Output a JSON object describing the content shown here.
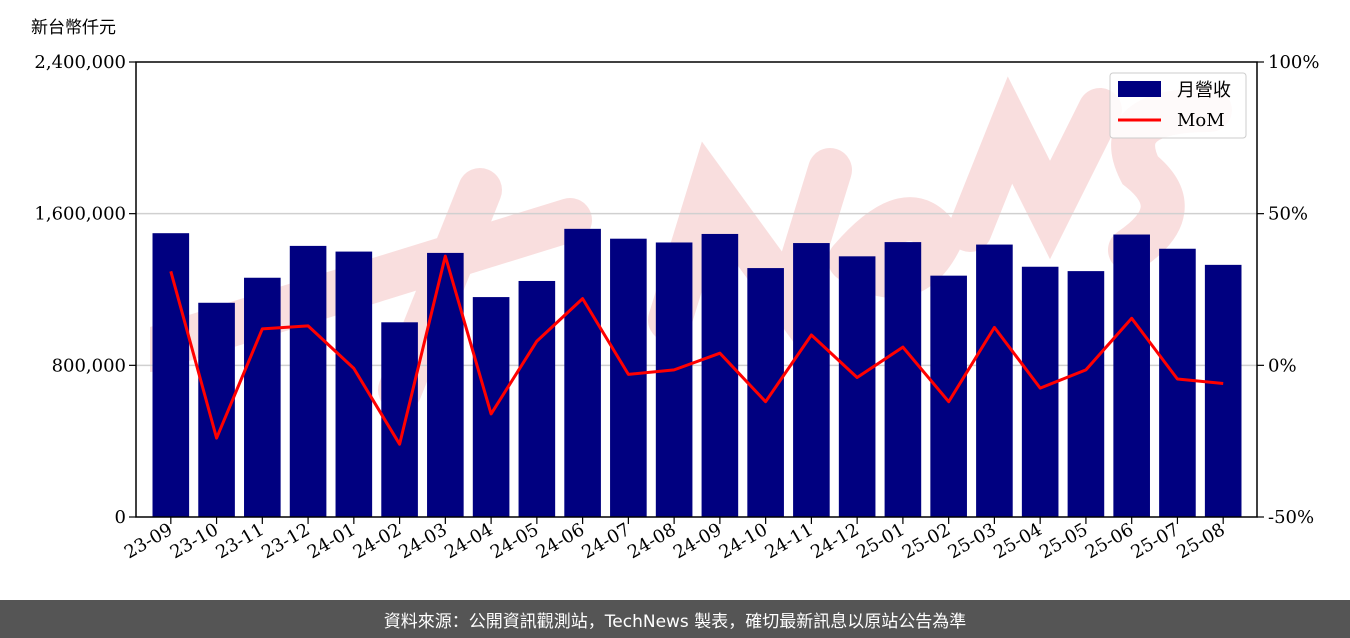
{
  "footer": {
    "text": "資料來源：公開資訊觀測站，TechNews 製表，確切最新訊息以原站公告為準"
  },
  "colors": {
    "bar": "#000080",
    "line": "#ff0000",
    "footer_bg": "#555555",
    "watermark": "#f5c4c4"
  },
  "watermark_icon": "technews-logo-watermark",
  "chart_data": {
    "type": "bar",
    "ylabel": "新台幣仟元",
    "ylim": [
      0,
      2400000
    ],
    "y_ticks": [
      0,
      800000,
      1600000,
      2400000
    ],
    "y_tick_labels": [
      "0",
      "800,000",
      "1,600,000",
      "2,400,000"
    ],
    "y2lim": [
      -50,
      100
    ],
    "y2_ticks": [
      -50,
      0,
      50,
      100
    ],
    "y2_tick_labels": [
      "-50%",
      "0%",
      "50%",
      "100%"
    ],
    "grid": "horizontal",
    "legend_position": "top-right",
    "categories": [
      "23-09",
      "23-10",
      "23-11",
      "23-12",
      "24-01",
      "24-02",
      "24-03",
      "24-04",
      "24-05",
      "24-06",
      "24-07",
      "24-08",
      "24-09",
      "24-10",
      "24-11",
      "24-12",
      "25-01",
      "25-02",
      "25-03",
      "25-04",
      "25-05",
      "25-06",
      "25-07",
      "25-08"
    ],
    "series": [
      {
        "name": "月營收",
        "type": "bar",
        "axis": "left",
        "values": [
          1497000,
          1130000,
          1262000,
          1430000,
          1400000,
          1027000,
          1393000,
          1160000,
          1245000,
          1520000,
          1468000,
          1448000,
          1493000,
          1313000,
          1445000,
          1375000,
          1450000,
          1273000,
          1437000,
          1320000,
          1297000,
          1490000,
          1415000,
          1330000
        ]
      },
      {
        "name": "MoM",
        "type": "line",
        "axis": "right",
        "values": [
          31,
          -24,
          12,
          13,
          -1,
          -26,
          36,
          -16,
          8,
          22,
          -3,
          -1.5,
          4,
          -12,
          10,
          -4,
          6,
          -12,
          12.5,
          -7.5,
          -1.5,
          15.5,
          -4.5,
          -6
        ]
      }
    ]
  }
}
